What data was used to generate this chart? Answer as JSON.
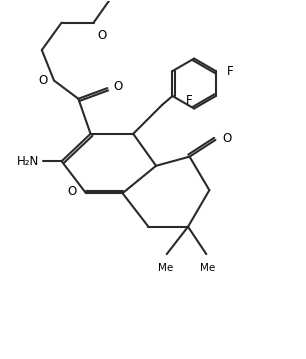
{
  "bg_color": "#ffffff",
  "line_color": "#2a2a2a",
  "bond_lw": 1.5,
  "figsize": [
    3.06,
    3.59
  ],
  "dpi": 100,
  "xlim": [
    0,
    10
  ],
  "ylim": [
    0,
    11.7
  ]
}
